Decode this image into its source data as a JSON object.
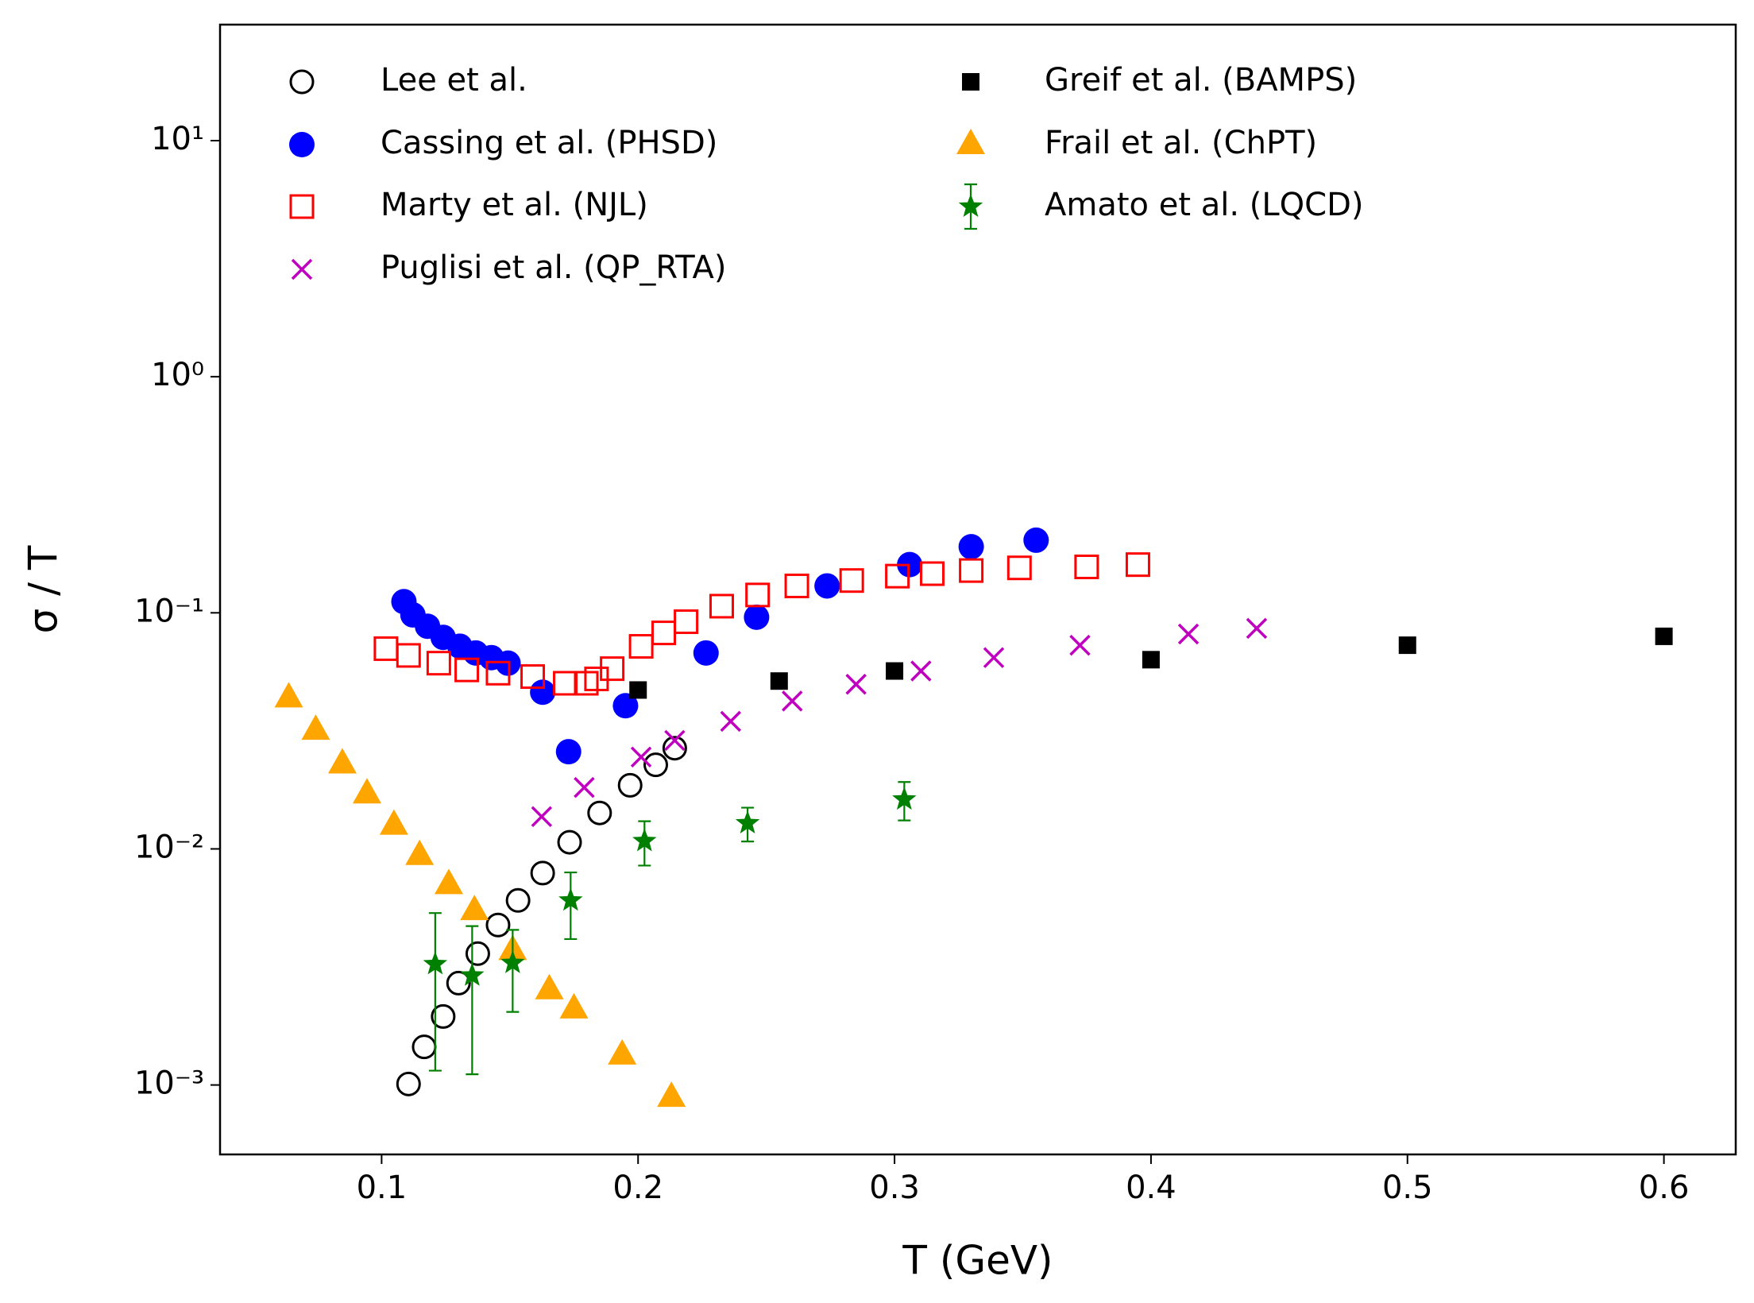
{
  "chart_data": {
    "type": "scatter",
    "xlabel": "T (GeV)",
    "ylabel": "σ / T",
    "xlim": [
      0.037,
      0.628
    ],
    "ylim": [
      0.000508,
      31
    ],
    "yscale": "log",
    "xticks": [
      0.1,
      0.2,
      0.3,
      0.4,
      0.5,
      0.6
    ],
    "yticks": [
      {
        "value": 0.001,
        "label": "10⁻³"
      },
      {
        "value": 0.01,
        "label": "10⁻²"
      },
      {
        "value": 0.1,
        "label": "10⁻¹"
      },
      {
        "value": 1,
        "label": "10⁰"
      },
      {
        "value": 10,
        "label": "10¹"
      }
    ],
    "legend": "upper left",
    "series": [
      {
        "name": "Lee et al.",
        "color": "#000000",
        "marker": "open-circle",
        "x": [
          0.1105,
          0.1166,
          0.124,
          0.13,
          0.1375,
          0.1454,
          0.1532,
          0.1628,
          0.1733,
          0.185,
          0.1969,
          0.2069,
          0.2143
        ],
        "values": [
          0.00101,
          0.00145,
          0.00195,
          0.0027,
          0.0036,
          0.00476,
          0.00605,
          0.0079,
          0.01067,
          0.0142,
          0.0186,
          0.0227,
          0.0267
        ]
      },
      {
        "name": "Cassing et al. (PHSD)",
        "color": "#0000ff",
        "marker": "circle",
        "x": [
          0.1087,
          0.1122,
          0.1179,
          0.124,
          0.1305,
          0.1367,
          0.1428,
          0.1493,
          0.1628,
          0.1729,
          0.1951,
          0.2265,
          0.2462,
          0.2737,
          0.3059,
          0.3299,
          0.3552
        ],
        "values": [
          0.1115,
          0.098,
          0.0877,
          0.0787,
          0.0722,
          0.0676,
          0.0646,
          0.0612,
          0.0461,
          0.0258,
          0.0404,
          0.0676,
          0.0958,
          0.13,
          0.16,
          0.1905,
          0.203
        ]
      },
      {
        "name": "Marty et al. (NJL)",
        "color": "#ff0000",
        "marker": "open-square",
        "x": [
          0.1017,
          0.1105,
          0.1223,
          0.1332,
          0.1454,
          0.1589,
          0.1716,
          0.1798,
          0.1838,
          0.1899,
          0.2012,
          0.21,
          0.2187,
          0.2326,
          0.2466,
          0.2619,
          0.2833,
          0.3011,
          0.3147,
          0.3299,
          0.3487,
          0.3749,
          0.3949
        ],
        "values": [
          0.0705,
          0.066,
          0.0612,
          0.0573,
          0.0555,
          0.0537,
          0.0503,
          0.0503,
          0.0525,
          0.058,
          0.0721,
          0.0822,
          0.0917,
          0.1067,
          0.119,
          0.13,
          0.137,
          0.143,
          0.1465,
          0.151,
          0.155,
          0.1565,
          0.16
        ]
      },
      {
        "name": "Puglisi et al. (QP_RTA)",
        "color": "#bf00bf",
        "marker": "x",
        "x": [
          0.1624,
          0.179,
          0.2012,
          0.2143,
          0.2361,
          0.2601,
          0.285,
          0.3103,
          0.3387,
          0.3723,
          0.4146,
          0.4412
        ],
        "values": [
          0.0137,
          0.0182,
          0.0245,
          0.0288,
          0.0347,
          0.0423,
          0.0498,
          0.0567,
          0.0646,
          0.0729,
          0.0813,
          0.0859
        ]
      },
      {
        "name": "Greif et al. (BAMPS)",
        "color": "#000000",
        "marker": "square",
        "x": [
          0.2,
          0.255,
          0.3,
          0.4,
          0.5,
          0.6
        ],
        "values": [
          0.0471,
          0.0514,
          0.0567,
          0.0633,
          0.0729,
          0.0795
        ]
      },
      {
        "name": "Frail et al. (ChPT)",
        "color": "#ffa500",
        "marker": "triangle",
        "x": [
          0.0638,
          0.0743,
          0.0847,
          0.0943,
          0.1048,
          0.1148,
          0.1262,
          0.1362,
          0.1511,
          0.1654,
          0.175,
          0.1938,
          0.213
        ],
        "values": [
          0.0436,
          0.0318,
          0.0229,
          0.0171,
          0.0126,
          0.00938,
          0.00706,
          0.00548,
          0.00371,
          0.00253,
          0.0021,
          0.00134,
          0.000887
        ]
      },
      {
        "name": "Amato et al. (LQCD)",
        "color": "#008000",
        "marker": "star",
        "x": [
          0.1209,
          0.1353,
          0.1511,
          0.1737,
          0.2025,
          0.2427,
          0.3038
        ],
        "values": [
          0.00325,
          0.00291,
          0.00329,
          0.00605,
          0.0108,
          0.01285,
          0.0162
        ],
        "errors": [
          0.0021,
          0.0018,
          0.00125,
          0.0019,
          0.0023,
          0.0021,
          0.003
        ]
      }
    ]
  }
}
